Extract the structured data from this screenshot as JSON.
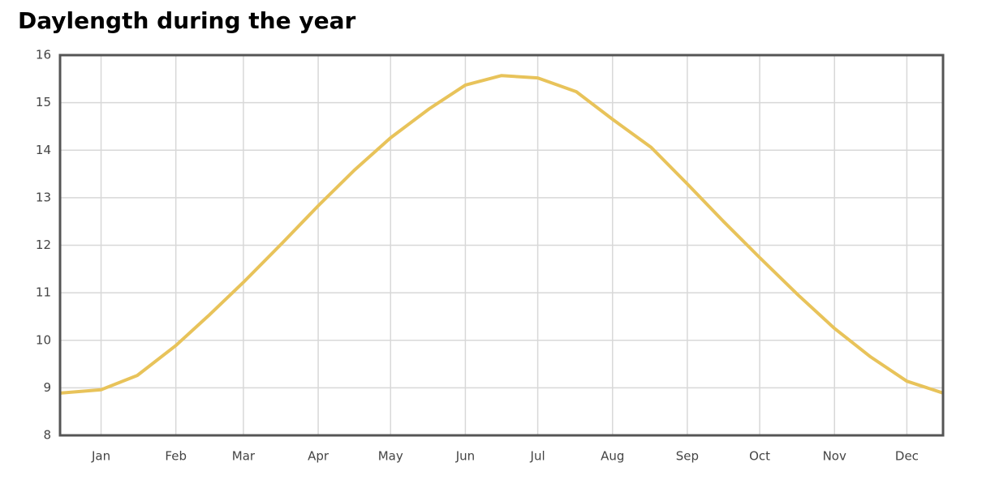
{
  "chart_data": {
    "type": "line",
    "title": "Daylength during the year",
    "x": [
      0,
      17,
      32,
      48,
      62,
      76,
      92,
      107,
      122,
      137,
      153,
      168,
      183,
      198,
      214,
      229,
      245,
      260,
      275,
      290,
      306,
      321,
      336,
      351,
      366
    ],
    "series": [
      {
        "color": "#e8c35a",
        "values": [
          8.89,
          8.96,
          9.26,
          9.89,
          10.54,
          11.22,
          12.04,
          12.83,
          13.58,
          14.26,
          14.87,
          15.37,
          15.57,
          15.52,
          15.23,
          14.65,
          14.06,
          13.29,
          12.5,
          11.74,
          10.95,
          10.25,
          9.65,
          9.14,
          8.89
        ]
      }
    ],
    "xlim": [
      0,
      366
    ],
    "xticks": [
      {
        "value": 17,
        "label": "Jan"
      },
      {
        "value": 48,
        "label": "Feb"
      },
      {
        "value": 76,
        "label": "Mar"
      },
      {
        "value": 107,
        "label": "Apr"
      },
      {
        "value": 137,
        "label": "May"
      },
      {
        "value": 168,
        "label": "Jun"
      },
      {
        "value": 198,
        "label": "Jul"
      },
      {
        "value": 229,
        "label": "Aug"
      },
      {
        "value": 260,
        "label": "Sep"
      },
      {
        "value": 290,
        "label": "Oct"
      },
      {
        "value": 321,
        "label": "Nov"
      },
      {
        "value": 351,
        "label": "Dec"
      }
    ],
    "ylim": [
      8,
      16
    ],
    "yticks": [
      8,
      9,
      10,
      11,
      12,
      13,
      14,
      15,
      16
    ],
    "grid": true
  }
}
